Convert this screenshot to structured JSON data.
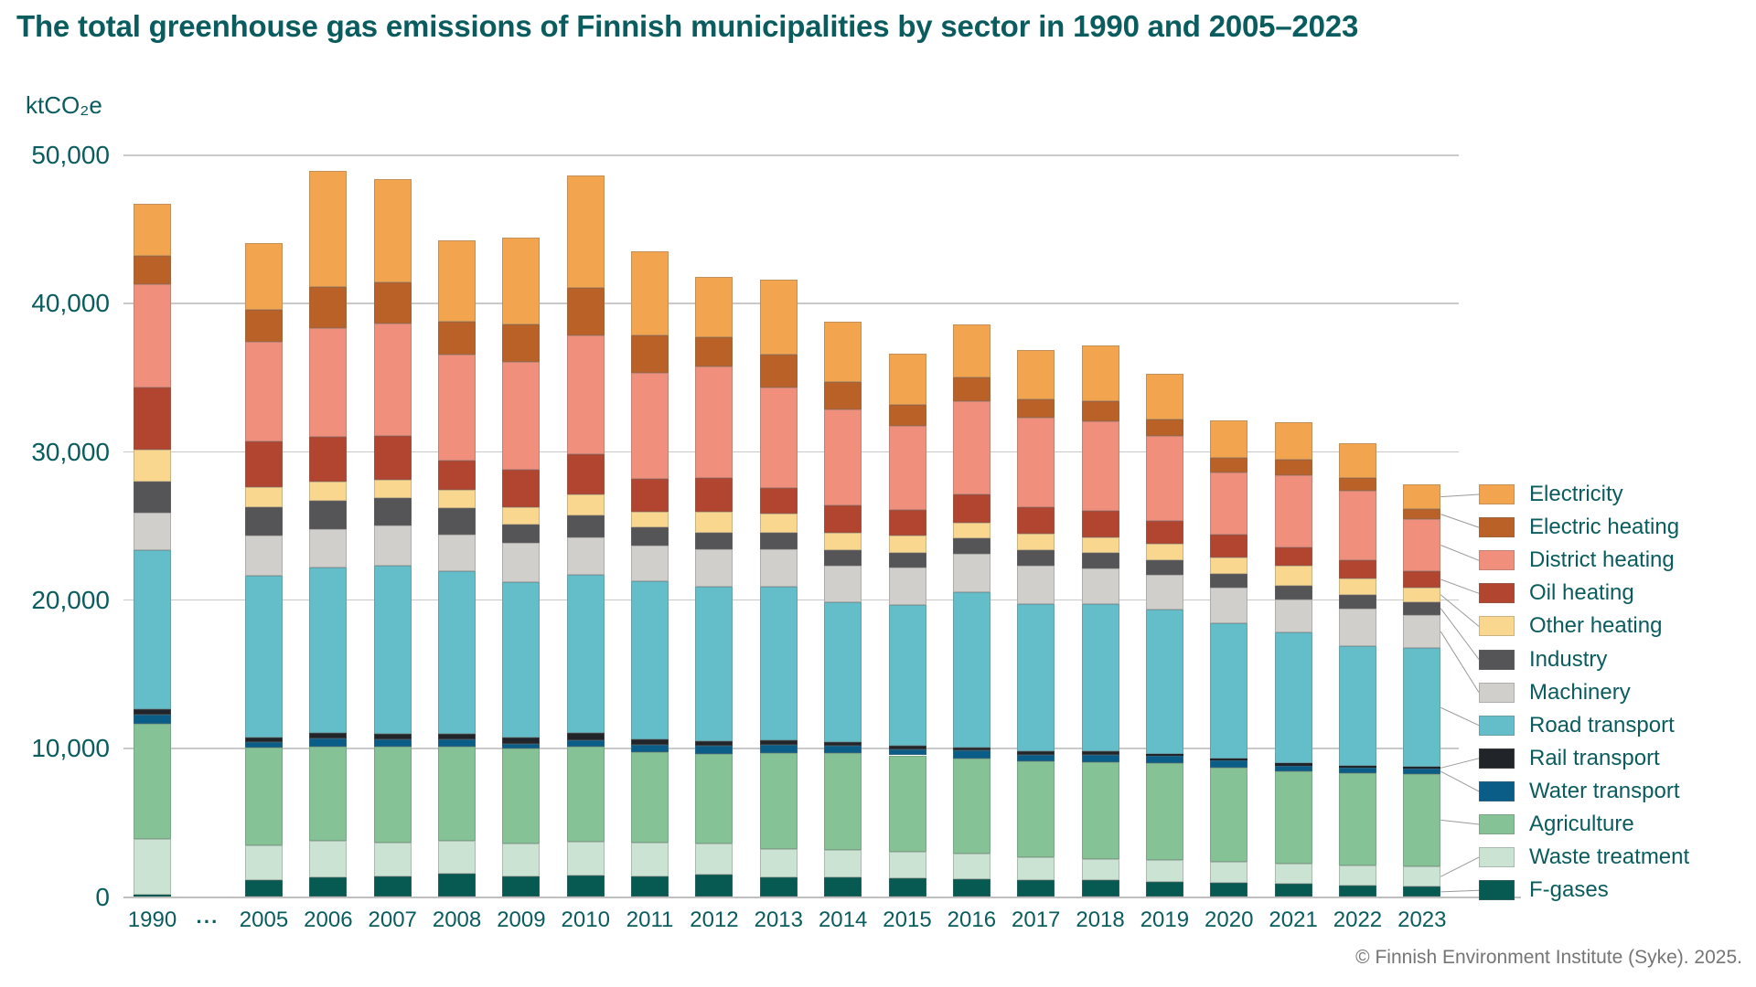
{
  "title": "The total greenhouse gas emissions of Finnish municipalities by sector in 1990 and 2005–2023",
  "y_axis": {
    "unit_label": "ktCO₂e",
    "tick_values": [
      0,
      10000,
      20000,
      30000,
      40000,
      50000
    ],
    "tick_labels": [
      "0",
      "10,000",
      "20,000",
      "30,000",
      "40,000",
      "50,000"
    ],
    "max": 50000
  },
  "x_axis": {
    "gap_label": "···"
  },
  "footer_credit": "© Finnish Environment Institute (Syke). 2025.",
  "colors": {
    "title_text": "#0A5C5E",
    "axis_text": "#0A5C5E",
    "gridline": "#C9C9C9",
    "axis_line": "#BFBFBF",
    "connector_line": "#9A9A9A",
    "footer_text": "#757575",
    "background": "#FFFFFF"
  },
  "chart_data": {
    "type": "bar",
    "stacked": true,
    "title": "The total greenhouse gas emissions of Finnish municipalities by sector in 1990 and 2005–2023",
    "ylabel": "ktCO₂e",
    "ylim": [
      0,
      50000
    ],
    "grid": true,
    "legend_position": "right",
    "categories": [
      "1990",
      "2005",
      "2006",
      "2007",
      "2008",
      "2009",
      "2010",
      "2011",
      "2012",
      "2013",
      "2014",
      "2015",
      "2016",
      "2017",
      "2018",
      "2019",
      "2020",
      "2021",
      "2022",
      "2023"
    ],
    "series_bottom_to_top": [
      {
        "name": "F-gases",
        "color": "#075A52",
        "values": [
          130,
          1140,
          1310,
          1380,
          1550,
          1380,
          1450,
          1410,
          1480,
          1350,
          1320,
          1280,
          1220,
          1110,
          1110,
          1010,
          940,
          870,
          770,
          700
        ]
      },
      {
        "name": "Waste treatment",
        "color": "#CAE3D3",
        "values": [
          3800,
          2370,
          2480,
          2300,
          2240,
          2210,
          2280,
          2240,
          2140,
          1880,
          1840,
          1740,
          1700,
          1600,
          1460,
          1500,
          1460,
          1390,
          1350,
          1350
        ]
      },
      {
        "name": "Agriculture",
        "color": "#85C295",
        "values": [
          7750,
          6570,
          6360,
          6440,
          6330,
          6410,
          6380,
          6140,
          6000,
          6490,
          6530,
          6530,
          6420,
          6470,
          6540,
          6500,
          6330,
          6230,
          6230,
          6260
        ]
      },
      {
        "name": "Water transport",
        "color": "#095D86",
        "values": [
          620,
          380,
          520,
          510,
          480,
          340,
          480,
          480,
          550,
          520,
          480,
          420,
          520,
          420,
          460,
          490,
          490,
          380,
          350,
          320
        ]
      },
      {
        "name": "Rail transport",
        "color": "#21252A",
        "values": [
          350,
          310,
          410,
          380,
          380,
          410,
          440,
          340,
          340,
          310,
          280,
          240,
          210,
          210,
          240,
          170,
          140,
          170,
          140,
          140
        ]
      },
      {
        "name": "Road transport",
        "color": "#63BEC9",
        "values": [
          10740,
          10910,
          11110,
          11320,
          10970,
          10480,
          10690,
          10660,
          10410,
          10380,
          9410,
          9480,
          10490,
          9910,
          9910,
          9700,
          9110,
          8770,
          8100,
          8000
        ]
      },
      {
        "name": "Machinery",
        "color": "#D1CFCB",
        "values": [
          2490,
          2680,
          2610,
          2720,
          2480,
          2660,
          2520,
          2450,
          2520,
          2500,
          2500,
          2500,
          2600,
          2610,
          2440,
          2370,
          2370,
          2260,
          2500,
          2250
        ]
      },
      {
        "name": "Industry",
        "color": "#555456",
        "values": [
          2140,
          1890,
          1930,
          1850,
          1790,
          1210,
          1480,
          1210,
          1140,
          1110,
          1010,
          1010,
          1040,
          1040,
          1040,
          940,
          970,
          940,
          910,
          880
        ]
      },
      {
        "name": "Other heating",
        "color": "#FAD78F",
        "values": [
          2130,
          1380,
          1280,
          1240,
          1200,
          1170,
          1450,
          1030,
          1380,
          1280,
          1180,
          1150,
          1040,
          1150,
          1040,
          1150,
          1110,
          1320,
          1110,
          940
        ]
      },
      {
        "name": "Oil heating",
        "color": "#B2452F",
        "values": [
          4170,
          3100,
          3020,
          2930,
          2000,
          2550,
          2660,
          2240,
          2310,
          1740,
          1840,
          1740,
          1880,
          1740,
          1810,
          1530,
          1500,
          1220,
          1220,
          1140
        ]
      },
      {
        "name": "District heating",
        "color": "#F08F7B",
        "values": [
          6980,
          6710,
          7330,
          7570,
          7160,
          7240,
          8030,
          7140,
          7520,
          6770,
          6490,
          5690,
          6280,
          6050,
          6020,
          5740,
          4170,
          4870,
          4700,
          3480
        ]
      },
      {
        "name": "Electric heating",
        "color": "#BA6127",
        "values": [
          1920,
          2130,
          2760,
          2790,
          2200,
          2550,
          3210,
          2550,
          1930,
          2260,
          1810,
          1420,
          1630,
          1260,
          1360,
          1080,
          1040,
          1040,
          870,
          700
        ]
      },
      {
        "name": "Electricity",
        "color": "#F2A44F",
        "values": [
          3490,
          4510,
          7810,
          6980,
          5470,
          5860,
          7550,
          5620,
          4100,
          5030,
          4100,
          3410,
          3580,
          3300,
          3750,
          3100,
          2510,
          2540,
          2360,
          1640
        ]
      }
    ]
  }
}
